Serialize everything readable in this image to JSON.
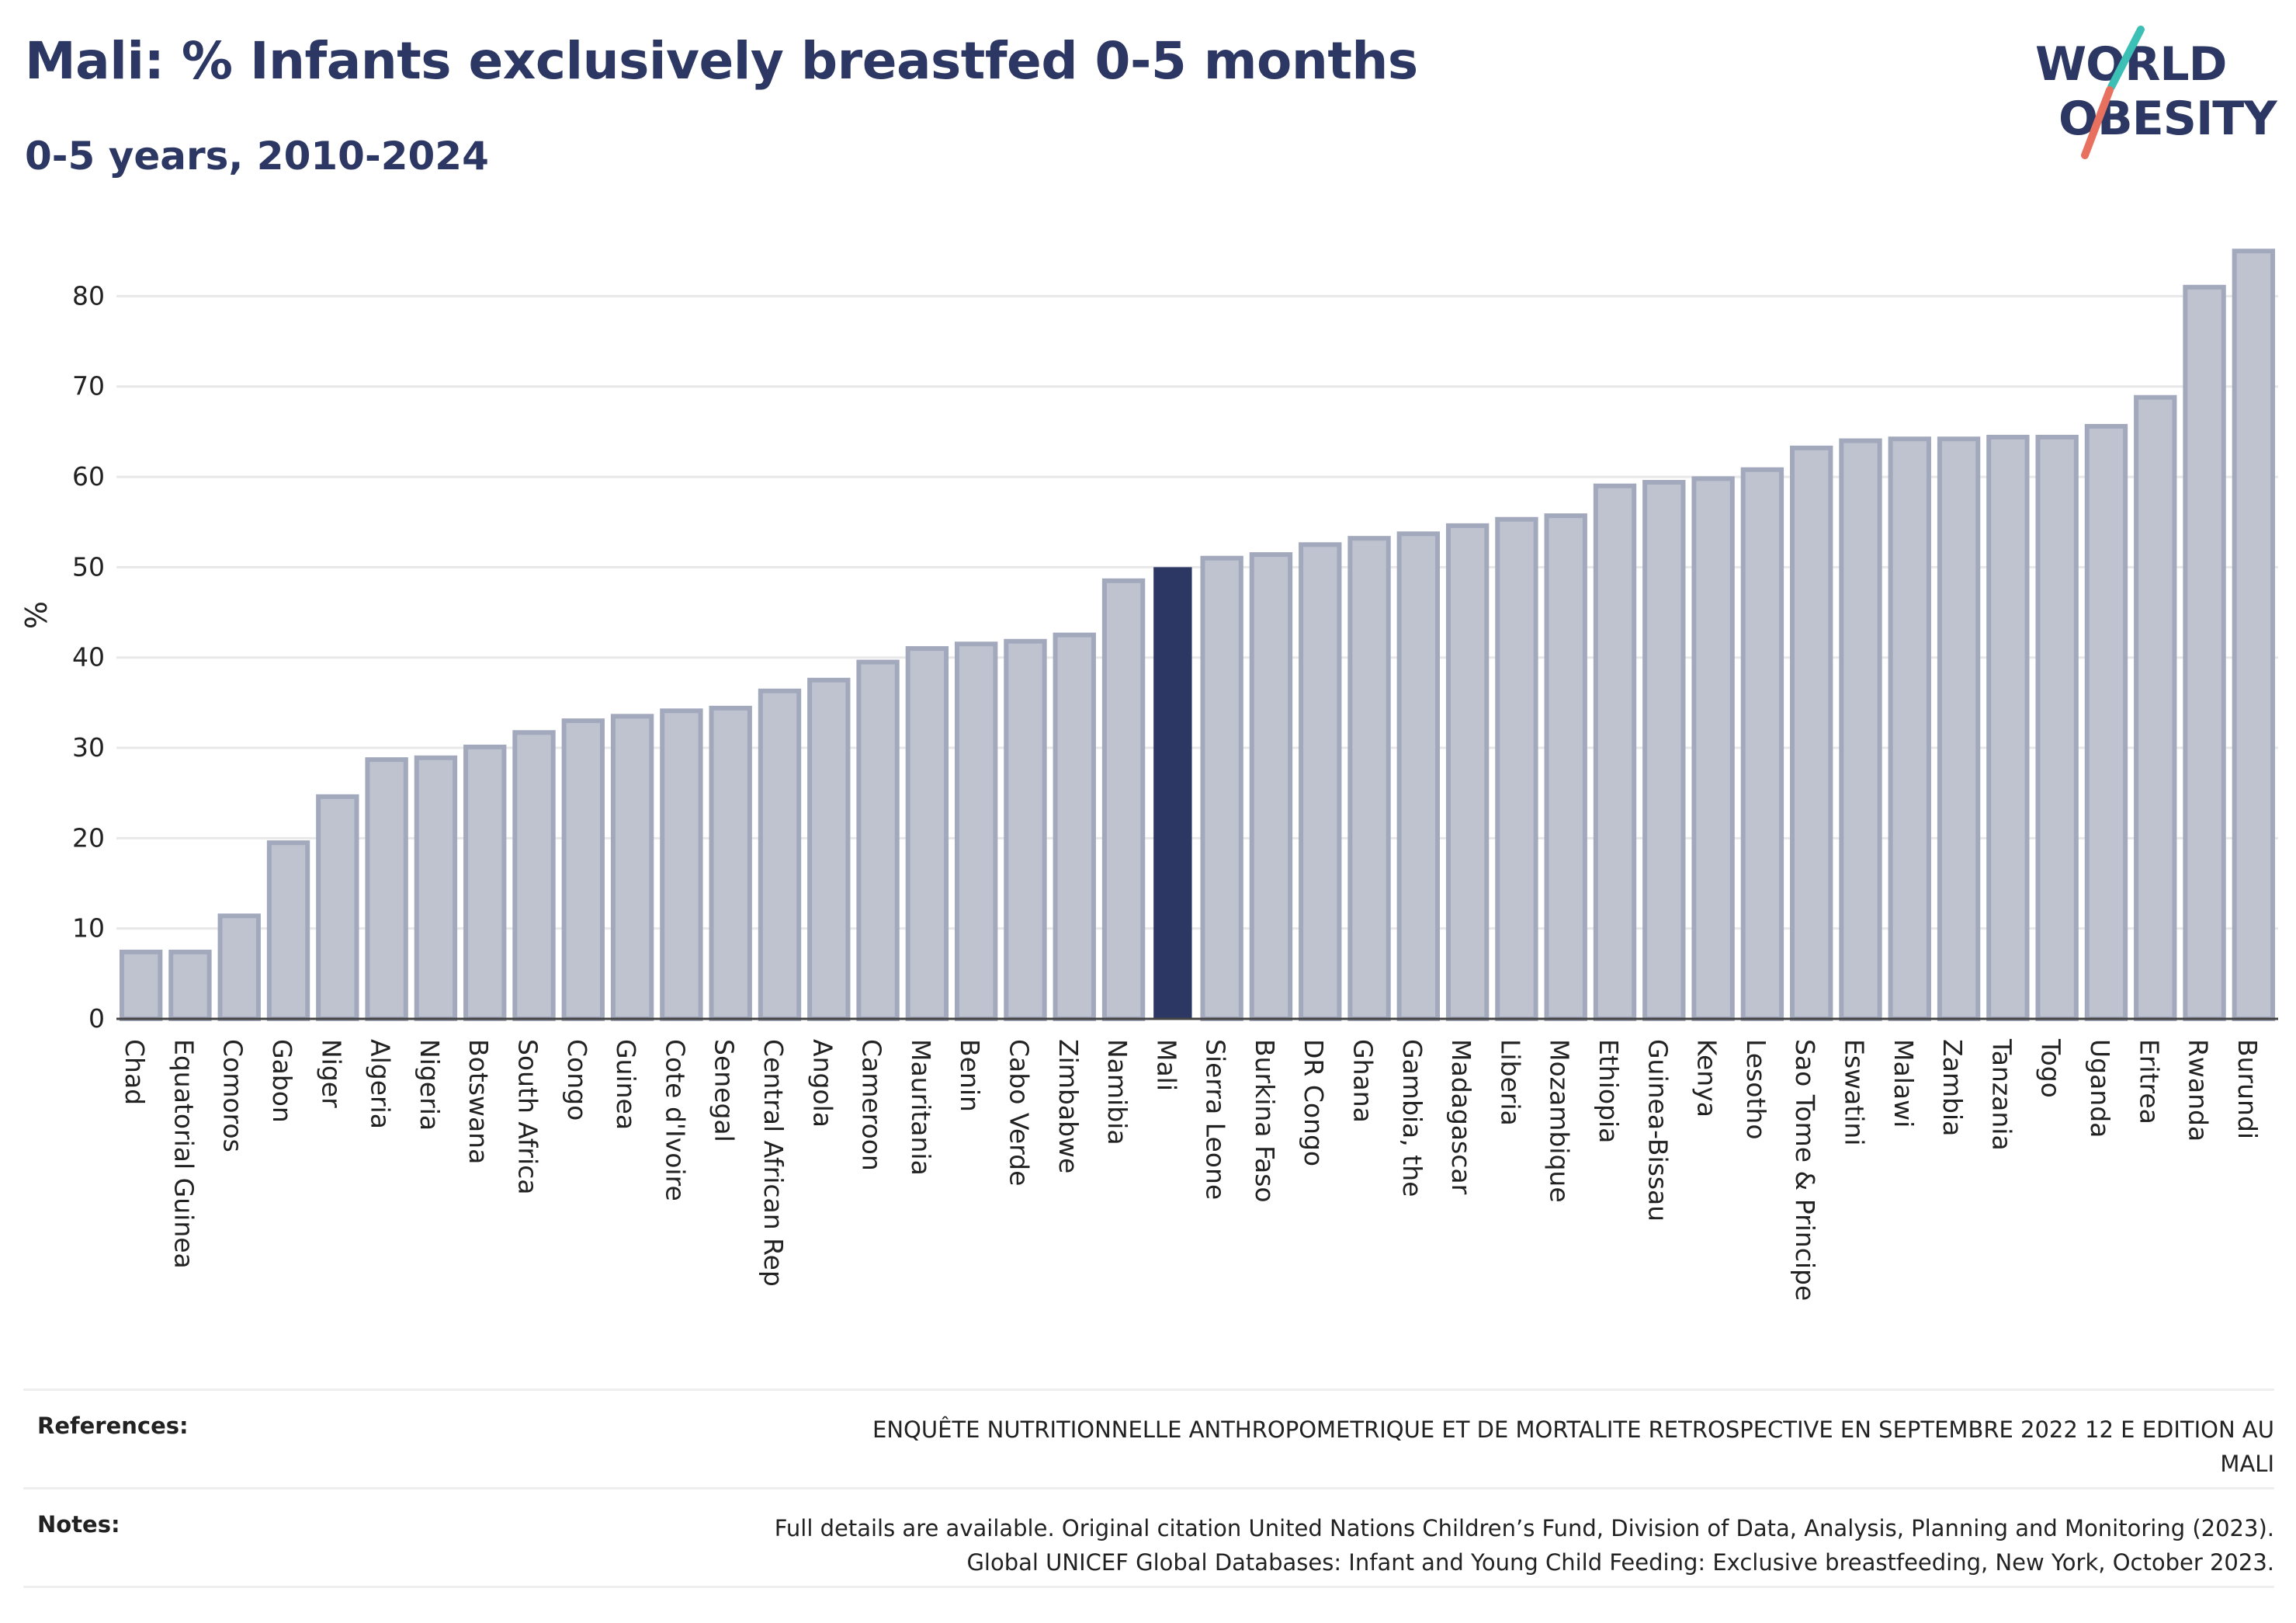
{
  "header": {
    "title": "Mali: % Infants exclusively breastfed 0-5 months",
    "subtitle": "0-5 years, 2010-2024"
  },
  "logo": {
    "line1": "WORLD",
    "line2": "OBESITY"
  },
  "colors": {
    "highlight_bar": "#2c3863",
    "other_bar": "#bfc3d0",
    "other_bar_stroke": "#a3a9bd",
    "text": "#2c3863",
    "grid": "#e8e8e8",
    "logo_teal": "#3cbfb4",
    "logo_coral": "#e8705f"
  },
  "chart_data": {
    "type": "bar",
    "title": "Mali: % Infants exclusively breastfed 0-5 months",
    "subtitle": "0-5 years, 2010-2024",
    "xlabel": "",
    "ylabel": "%",
    "ylim": [
      0,
      87
    ],
    "yticks": [
      0,
      10,
      20,
      30,
      40,
      50,
      60,
      70,
      80
    ],
    "grid": true,
    "highlight": "Mali",
    "categories": [
      "Chad",
      "Equatorial Guinea",
      "Comoros",
      "Gabon",
      "Niger",
      "Algeria",
      "Nigeria",
      "Botswana",
      "South Africa",
      "Congo",
      "Guinea",
      "Cote d'Ivoire",
      "Senegal",
      "Central African Rep",
      "Angola",
      "Cameroon",
      "Mauritania",
      "Benin",
      "Cabo Verde",
      "Zimbabwe",
      "Namibia",
      "Mali",
      "Sierra Leone",
      "Burkina Faso",
      "DR Congo",
      "Ghana",
      "Gambia, the",
      "Madagascar",
      "Liberia",
      "Mozambique",
      "Ethiopia",
      "Guinea-Bissau",
      "Kenya",
      "Lesotho",
      "Sao Tome & Principe",
      "Eswatini",
      "Malawi",
      "Zambia",
      "Tanzania",
      "Togo",
      "Uganda",
      "Eritrea",
      "Rwanda",
      "Burundi"
    ],
    "values": [
      7.4,
      7.4,
      11.4,
      19.5,
      24.6,
      28.7,
      28.9,
      30.1,
      31.7,
      33.0,
      33.5,
      34.1,
      34.4,
      36.3,
      37.5,
      39.5,
      41.0,
      41.5,
      41.8,
      42.5,
      48.5,
      50.0,
      51.0,
      51.4,
      52.5,
      53.2,
      53.7,
      54.6,
      55.3,
      55.7,
      59.0,
      59.4,
      59.8,
      60.8,
      63.2,
      64.0,
      64.2,
      64.2,
      64.4,
      64.4,
      65.6,
      68.8,
      81.0,
      85.0
    ]
  },
  "footer": {
    "references_label": "References:",
    "references_text": "ENQUÊTE NUTRITIONNELLE ANTHROPOMETRIQUE ET DE MORTALITE RETROSPECTIVE EN SEPTEMBRE 2022 12 E EDITION AU\nMALI",
    "notes_label": "Notes:",
    "notes_text": "Full details are available. Original citation United Nations Children’s Fund, Division of Data, Analysis, Planning and Monitoring (2023).\nGlobal UNICEF Global Databases: Infant and Young Child Feeding: Exclusive breastfeeding, New York, October 2023."
  }
}
